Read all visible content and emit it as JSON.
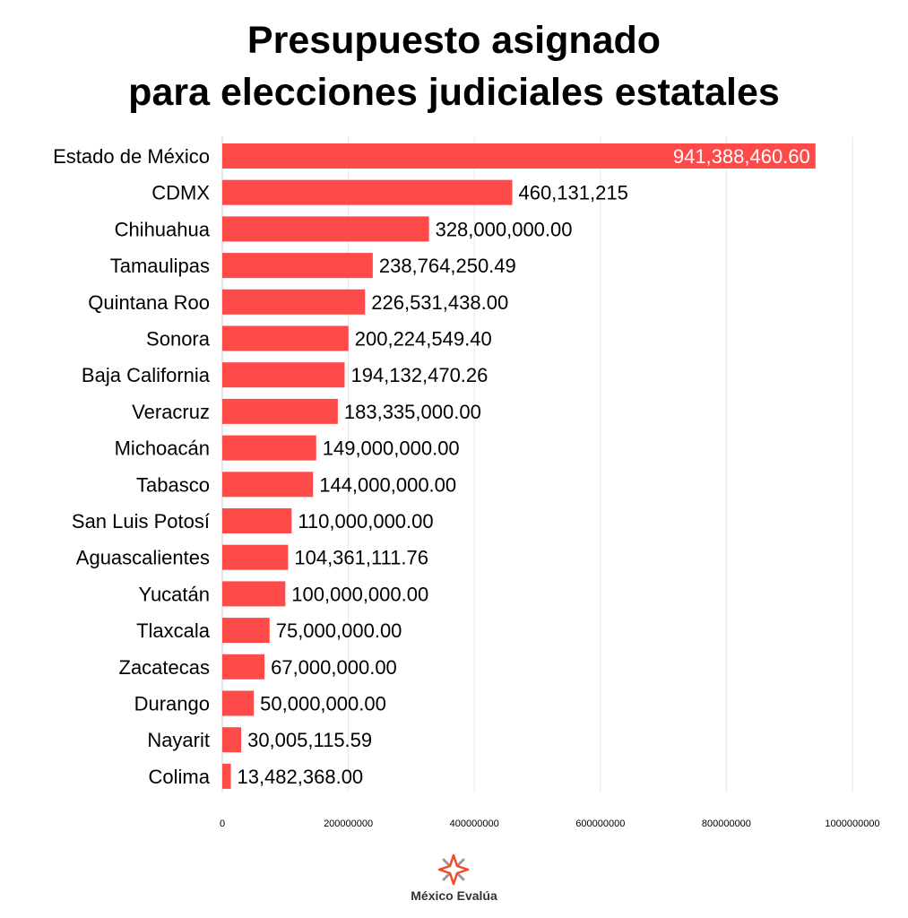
{
  "title_line1": "Presupuesto asignado",
  "title_line2": "para elecciones judiciales estatales",
  "logo_text": "México Evalúa",
  "colors": {
    "bar": "#ff4a4a",
    "grid": "#e6e6e6",
    "axis": "#cccccc"
  },
  "chart_data": {
    "type": "bar",
    "orientation": "horizontal",
    "title": "Presupuesto asignado para elecciones judiciales estatales",
    "categories": [
      "Estado de México",
      "CDMX",
      "Chihuahua",
      "Tamaulipas",
      "Quintana Roo",
      "Sonora",
      "Baja California",
      "Veracruz",
      "Michoacán",
      "Tabasco",
      "San Luis Potosí",
      "Aguascalientes",
      "Yucatán",
      "Tlaxcala",
      "Zacatecas",
      "Durango",
      "Nayarit",
      "Colima"
    ],
    "values": [
      941388460.6,
      460131215,
      328000000,
      238764250.49,
      226531438,
      200224549.4,
      194132470.26,
      183335000,
      149000000,
      144000000,
      110000000,
      104361111.76,
      100000000,
      75000000,
      67000000,
      50000000,
      30005115.59,
      13482368
    ],
    "value_labels": [
      "941,388,460.60",
      "460,131,215",
      "328,000,000.00",
      "238,764,250.49",
      "226,531,438.00",
      "200,224,549.40",
      "194,132,470.26",
      "183,335,000.00",
      "149,000,000.00",
      "144,000,000.00",
      "110,000,000.00",
      "104,361,111.76",
      "100,000,000.00",
      "75,000,000.00",
      "67,000,000.00",
      "50,000,000.00",
      "30,005,115.59",
      "13,482,368.00"
    ],
    "xlim": [
      0,
      1000000000
    ],
    "xticks": [
      0,
      200000000,
      400000000,
      600000000,
      800000000,
      1000000000
    ],
    "xtick_labels": [
      "0",
      "200000000",
      "400000000",
      "600000000",
      "800000000",
      "1000000000"
    ],
    "xlabel": "",
    "ylabel": "",
    "grid": true
  }
}
